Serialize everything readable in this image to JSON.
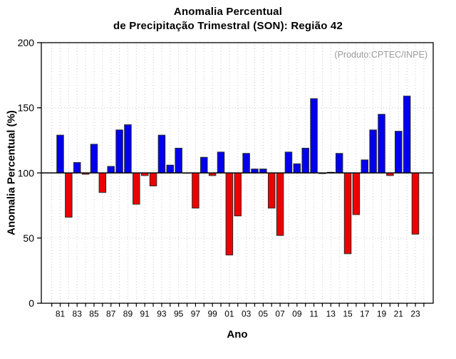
{
  "chart_data": {
    "type": "bar",
    "title_lines": [
      "Anomalia Percentual",
      "de Precipitação Trimestral (SON): Região 42"
    ],
    "xlabel": "Ano",
    "ylabel": "Anomalia Percentual (%)",
    "annotation": "(Produto:CPTEC/INPE)",
    "ylim": [
      0,
      200
    ],
    "y_ticks": [
      0,
      50,
      100,
      150,
      200
    ],
    "baseline": 100,
    "grid": "dotted vertical line every year; dotted horizontal lines at 50 and 150; solid black line at 100",
    "legend_position": "none",
    "x_tick_labels": [
      "81",
      "83",
      "85",
      "87",
      "89",
      "91",
      "93",
      "95",
      "97",
      "99",
      "01",
      "03",
      "05",
      "07",
      "09",
      "11",
      "13",
      "15",
      "17",
      "19",
      "21",
      "23"
    ],
    "years": [
      1981,
      1982,
      1983,
      1984,
      1985,
      1986,
      1987,
      1988,
      1989,
      1990,
      1991,
      1992,
      1993,
      1994,
      1995,
      1996,
      1997,
      1998,
      1999,
      2000,
      2001,
      2002,
      2003,
      2004,
      2005,
      2006,
      2007,
      2008,
      2009,
      2010,
      2011,
      2012,
      2013,
      2014,
      2015,
      2016,
      2017,
      2018,
      2019,
      2020,
      2021,
      2022,
      2023
    ],
    "values": [
      129,
      66,
      108,
      99,
      122,
      85,
      105,
      133,
      137,
      76,
      98,
      90,
      129,
      106,
      119,
      100,
      73,
      112,
      98,
      116,
      37,
      67,
      115,
      103,
      103,
      73,
      52,
      116,
      107,
      119,
      157,
      99.5,
      100.5,
      115,
      38,
      68,
      110,
      133,
      145,
      98,
      132,
      159,
      53
    ],
    "colors": {
      "above_baseline_bar": "#0000ee",
      "below_baseline_bar": "#ee0000",
      "bar_outline": "#2a2a2a",
      "axis": "#000000",
      "grid": "#c9c9c9",
      "annotation_text": "#9a9a9a"
    }
  }
}
